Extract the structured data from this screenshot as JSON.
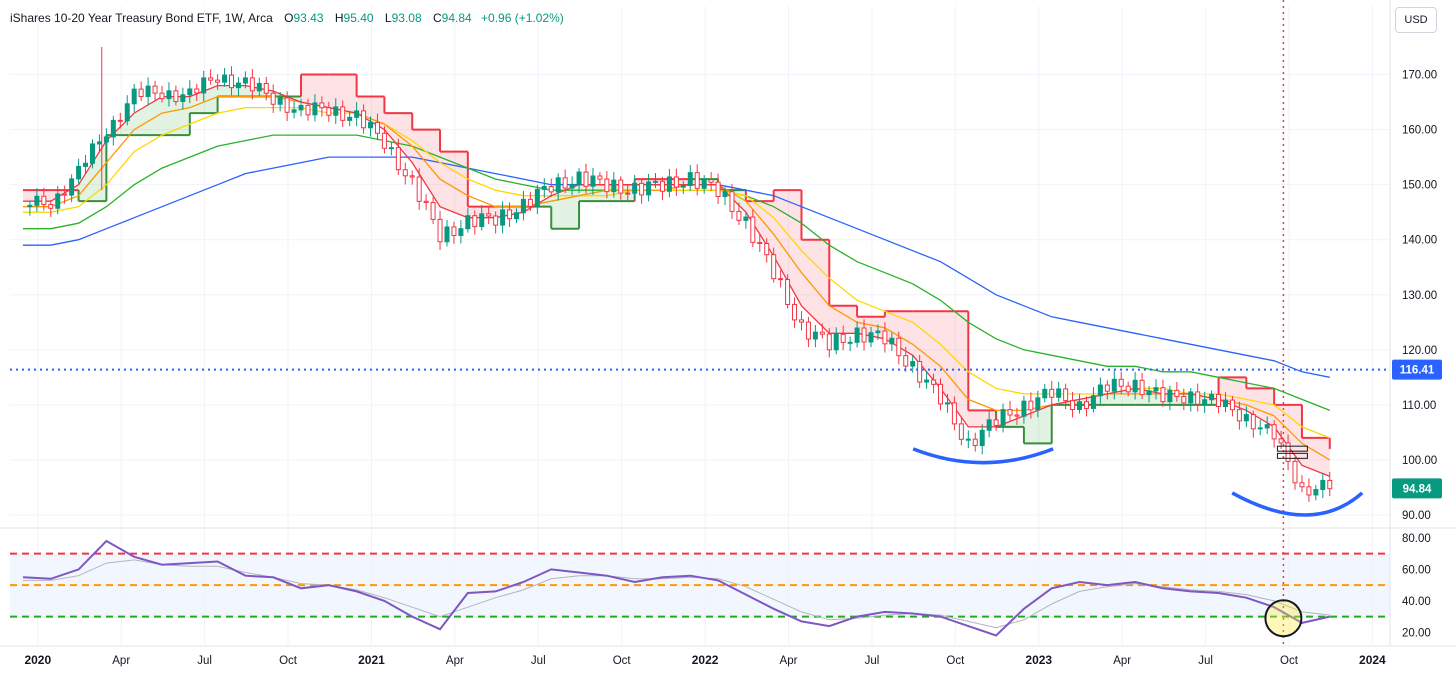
{
  "header": {
    "title": "iShares 10-20 Year Treasury Bond ETF, 1W, Arca",
    "o_label": "O",
    "o_value": "93.43",
    "h_label": "H",
    "h_value": "95.40",
    "l_label": "L",
    "l_value": "93.08",
    "c_label": "C",
    "c_value": "94.84",
    "change": "+0.96 (+1.02%)"
  },
  "currency_button": "USD",
  "colors": {
    "up": "#089981",
    "down": "#f23645",
    "ma_red": "#f23645",
    "ma_orange": "#ff9800",
    "ma_yellow": "#ffd700",
    "ma_green": "#2ab32a",
    "ma_blue": "#2962ff",
    "rsi": "#7e57c2",
    "level": "#2962ff"
  },
  "chart_data": [
    {
      "type": "candlestick",
      "title": "iShares 10-20 Year Treasury Bond ETF, 1W, Arca",
      "ylim": [
        88,
        177
      ],
      "y_ticks": [
        "170.00",
        "160.00",
        "150.00",
        "140.00",
        "130.00",
        "120.00",
        "110.00",
        "100.00",
        "90.00"
      ],
      "x_ticks": [
        "2020",
        "Apr",
        "Jul",
        "Oct",
        "2021",
        "Apr",
        "Jul",
        "Oct",
        "2022",
        "Apr",
        "Jul",
        "Oct",
        "2023",
        "Apr",
        "Jul",
        "Oct",
        "2024"
      ],
      "x_tick_dates": [
        "2020-01",
        "2020-04",
        "2020-07",
        "2020-10",
        "2021-01",
        "2021-04",
        "2021-07",
        "2021-10",
        "2022-01",
        "2022-04",
        "2022-07",
        "2022-10",
        "2023-01",
        "2023-04",
        "2023-07",
        "2023-10",
        "2024-01"
      ],
      "horizontal_level": {
        "value": 116.41,
        "label": "116.41"
      },
      "last_price": {
        "value": 94.84,
        "label": "94.84"
      },
      "vertical_marker_date": "2023-09-25",
      "close_series": {
        "dates": [
          "2019-12",
          "2020-01",
          "2020-02",
          "2020-03",
          "2020-04",
          "2020-05",
          "2020-06",
          "2020-07",
          "2020-08",
          "2020-09",
          "2020-10",
          "2020-11",
          "2020-12",
          "2021-01",
          "2021-02",
          "2021-03",
          "2021-04",
          "2021-05",
          "2021-06",
          "2021-07",
          "2021-08",
          "2021-09",
          "2021-10",
          "2021-11",
          "2021-12",
          "2022-01",
          "2022-02",
          "2022-03",
          "2022-04",
          "2022-05",
          "2022-06",
          "2022-07",
          "2022-08",
          "2022-09",
          "2022-10",
          "2022-11",
          "2022-12",
          "2023-01",
          "2023-02",
          "2023-03",
          "2023-04",
          "2023-05",
          "2023-06",
          "2023-07",
          "2023-08",
          "2023-09",
          "2023-10",
          "2023-11"
        ],
        "values": [
          146,
          147,
          152,
          160,
          166,
          167,
          166,
          170,
          168,
          166,
          163,
          164,
          162,
          158,
          150,
          141,
          143,
          144,
          146,
          150,
          151,
          150,
          149,
          150,
          151,
          149,
          143,
          134,
          124,
          121,
          123,
          122,
          117,
          111,
          103,
          107,
          110,
          112,
          110,
          113,
          114,
          111,
          112,
          110,
          108,
          104,
          95,
          94.84
        ]
      },
      "moving_averages": [
        {
          "color": "red",
          "values": [
            147,
            147,
            150,
            158,
            163,
            166,
            166,
            168,
            168,
            167,
            165,
            164,
            163,
            160,
            154,
            146,
            144,
            144,
            145,
            148,
            150,
            150,
            150,
            150,
            150,
            150,
            145,
            137,
            128,
            123,
            123,
            122,
            119,
            113,
            106,
            106,
            108,
            110,
            111,
            112,
            113,
            112,
            112,
            111,
            109,
            106,
            99,
            97
          ]
        },
        {
          "color": "orange",
          "values": [
            146,
            146,
            148,
            154,
            160,
            163,
            164,
            166,
            166,
            166,
            165,
            164,
            163,
            161,
            157,
            151,
            148,
            146,
            146,
            147,
            148,
            149,
            149,
            149,
            150,
            150,
            147,
            141,
            134,
            128,
            125,
            124,
            121,
            117,
            111,
            109,
            109,
            110,
            111,
            112,
            112,
            112,
            112,
            111,
            110,
            108,
            103,
            100
          ]
        },
        {
          "color": "yellow",
          "values": [
            145,
            145,
            146,
            150,
            156,
            159,
            161,
            163,
            164,
            164,
            164,
            163,
            163,
            161,
            158,
            154,
            151,
            149,
            148,
            148,
            148,
            148,
            149,
            149,
            149,
            149,
            148,
            144,
            138,
            133,
            129,
            127,
            125,
            121,
            116,
            113,
            112,
            112,
            112,
            112,
            113,
            113,
            112,
            112,
            111,
            110,
            106,
            104
          ]
        },
        {
          "color": "green",
          "values": [
            142,
            142,
            143,
            146,
            150,
            153,
            155,
            157,
            158,
            159,
            159,
            159,
            159,
            158,
            157,
            155,
            153,
            151,
            150,
            149,
            149,
            149,
            149,
            149,
            149,
            149,
            148,
            146,
            143,
            139,
            136,
            134,
            132,
            129,
            125,
            122,
            120,
            119,
            118,
            117,
            117,
            116,
            116,
            115,
            114,
            113,
            111,
            109
          ]
        },
        {
          "color": "blue",
          "values": [
            139,
            139,
            140,
            142,
            144,
            146,
            148,
            150,
            152,
            153,
            154,
            155,
            155,
            155,
            155,
            154,
            153,
            152,
            151,
            150,
            150,
            150,
            150,
            150,
            150,
            150,
            149,
            148,
            146,
            144,
            142,
            140,
            138,
            136,
            133,
            130,
            128,
            126,
            125,
            124,
            123,
            122,
            121,
            120,
            119,
            118,
            116,
            115
          ]
        }
      ],
      "trailing_stop": {
        "values": [
          149,
          149,
          147,
          159,
          159,
          159,
          163,
          166,
          166,
          166,
          170,
          170,
          166,
          163,
          160,
          156,
          146,
          146,
          146,
          142,
          147,
          147,
          151,
          151,
          151,
          149,
          147,
          149,
          140,
          128,
          126,
          127,
          127,
          127,
          109,
          106,
          103,
          110,
          110,
          110,
          110,
          110,
          110,
          115,
          113,
          110,
          104,
          102
        ]
      }
    },
    {
      "type": "line",
      "title": "RSI",
      "ylim": [
        12,
        85
      ],
      "y_ticks": [
        "80.00",
        "60.00",
        "40.00",
        "20.00"
      ],
      "levels": [
        70,
        50,
        30
      ],
      "band": [
        30,
        70
      ],
      "series": [
        {
          "color": "purple",
          "values": [
            55,
            54,
            60,
            78,
            68,
            63,
            64,
            65,
            56,
            55,
            48,
            50,
            46,
            40,
            30,
            22,
            45,
            46,
            52,
            60,
            58,
            56,
            52,
            55,
            56,
            53,
            44,
            35,
            27,
            24,
            30,
            33,
            32,
            30,
            24,
            18,
            35,
            48,
            52,
            50,
            52,
            48,
            46,
            45,
            42,
            36,
            26,
            30
          ]
        },
        {
          "color": "gray",
          "values": [
            53,
            53,
            56,
            64,
            66,
            63,
            62,
            62,
            58,
            55,
            51,
            50,
            47,
            42,
            36,
            30,
            36,
            42,
            47,
            54,
            56,
            56,
            54,
            54,
            55,
            54,
            49,
            41,
            33,
            28,
            29,
            31,
            32,
            31,
            27,
            23,
            28,
            38,
            46,
            49,
            51,
            49,
            47,
            46,
            44,
            40,
            33,
            31
          ]
        }
      ]
    }
  ]
}
